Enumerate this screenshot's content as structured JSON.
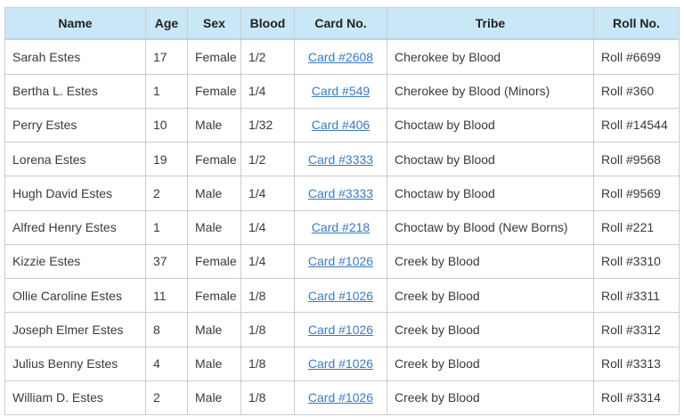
{
  "colors": {
    "header_bg": "#c9e7f7",
    "border": "#cccccc",
    "link": "#3a7bbf",
    "text": "#3a3a3a"
  },
  "table": {
    "columns": [
      {
        "label": "Name"
      },
      {
        "label": "Age"
      },
      {
        "label": "Sex"
      },
      {
        "label": "Blood"
      },
      {
        "label": "Card No."
      },
      {
        "label": "Tribe"
      },
      {
        "label": "Roll No."
      }
    ],
    "rows": [
      {
        "name": "Sarah Estes",
        "age": "17",
        "sex": "Female",
        "blood": "1/2",
        "card_no": "Card #2608",
        "tribe": "Cherokee by Blood",
        "roll_no": "Roll #6699"
      },
      {
        "name": "Bertha L. Estes",
        "age": "1",
        "sex": "Female",
        "blood": "1/4",
        "card_no": "Card #549",
        "tribe": "Cherokee by Blood (Minors)",
        "roll_no": "Roll #360"
      },
      {
        "name": "Perry Estes",
        "age": "10",
        "sex": "Male",
        "blood": "1/32",
        "card_no": "Card #406",
        "tribe": "Choctaw by Blood",
        "roll_no": "Roll #14544"
      },
      {
        "name": "Lorena Estes",
        "age": "19",
        "sex": "Female",
        "blood": "1/2",
        "card_no": "Card #3333",
        "tribe": "Choctaw by Blood",
        "roll_no": "Roll #9568"
      },
      {
        "name": "Hugh David Estes",
        "age": "2",
        "sex": "Male",
        "blood": "1/4",
        "card_no": "Card #3333",
        "tribe": "Choctaw by Blood",
        "roll_no": "Roll #9569"
      },
      {
        "name": "Alfred Henry Estes",
        "age": "1",
        "sex": "Male",
        "blood": "1/4",
        "card_no": "Card #218",
        "tribe": "Choctaw by Blood (New Borns)",
        "roll_no": "Roll #221"
      },
      {
        "name": "Kizzie Estes",
        "age": "37",
        "sex": "Female",
        "blood": "1/4",
        "card_no": "Card #1026",
        "tribe": "Creek by Blood",
        "roll_no": "Roll #3310"
      },
      {
        "name": "Ollie Caroline Estes",
        "age": "11",
        "sex": "Female",
        "blood": "1/8",
        "card_no": "Card #1026",
        "tribe": "Creek by Blood",
        "roll_no": "Roll #3311"
      },
      {
        "name": "Joseph Elmer Estes",
        "age": "8",
        "sex": "Male",
        "blood": "1/8",
        "card_no": "Card #1026",
        "tribe": "Creek by Blood",
        "roll_no": "Roll #3312"
      },
      {
        "name": "Julius Benny Estes",
        "age": "4",
        "sex": "Male",
        "blood": "1/8",
        "card_no": "Card #1026",
        "tribe": "Creek by Blood",
        "roll_no": "Roll #3313"
      },
      {
        "name": "William D. Estes",
        "age": "2",
        "sex": "Male",
        "blood": "1/8",
        "card_no": "Card #1026",
        "tribe": "Creek by Blood",
        "roll_no": "Roll #3314"
      }
    ]
  }
}
